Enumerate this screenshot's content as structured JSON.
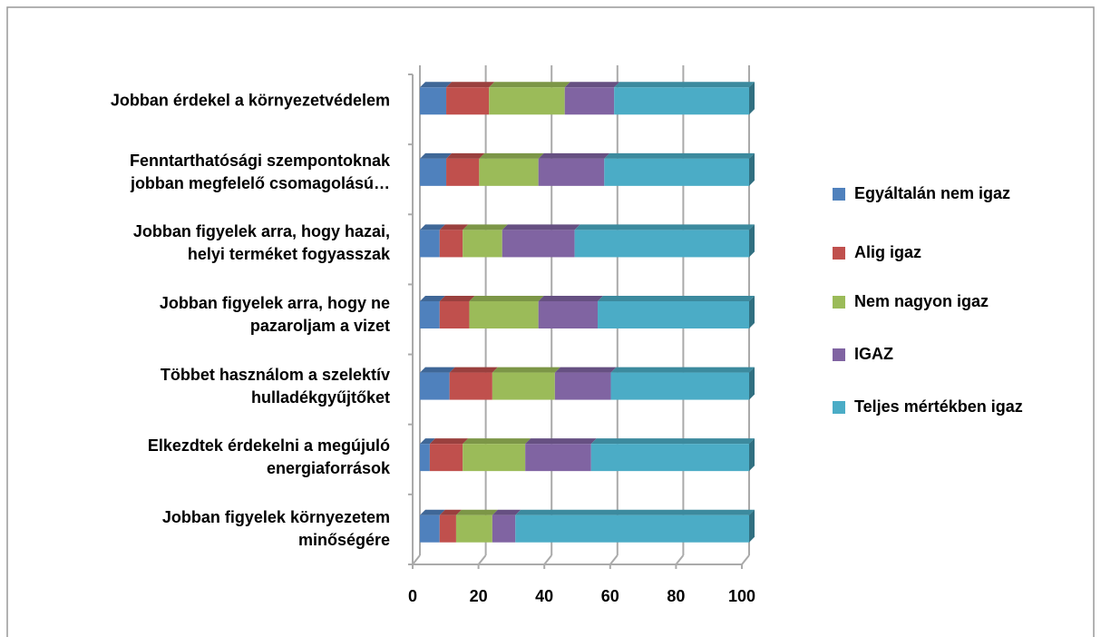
{
  "chart_data": {
    "type": "stacked_bar_horizontal",
    "categories": [
      "Jobban érdekel a környezetvédelem",
      "Fenntarthatósági szempontoknak\njobban megfelelő csomagolású…",
      "Jobban figyelek arra, hogy hazai,\nhelyi terméket fogyasszak",
      "Jobban figyelek arra, hogy ne\npazaroljam a vizet",
      "Többet használom a szelektív\nhulladékgyűjtőket",
      "Elkezdtek érdekelni a megújuló\nenergiaforrások",
      "Jobban figyelek környezetem\nminőségére"
    ],
    "series": [
      {
        "name": "Egyáltalán nem igaz",
        "color": "#4f81bd",
        "values": [
          8,
          8,
          6,
          6,
          9,
          3,
          6
        ]
      },
      {
        "name": "Alig igaz",
        "color": "#c0504d",
        "values": [
          13,
          10,
          7,
          9,
          13,
          10,
          5
        ]
      },
      {
        "name": "Nem nagyon igaz",
        "color": "#9bbb59",
        "values": [
          23,
          18,
          12,
          21,
          19,
          19,
          11
        ]
      },
      {
        "name": "IGAZ",
        "color": "#8064a2",
        "values": [
          15,
          20,
          22,
          18,
          17,
          20,
          7
        ]
      },
      {
        "name": "Teljes mértékben igaz",
        "color": "#4bacc6",
        "values": [
          41,
          44,
          53,
          46,
          42,
          48,
          71
        ]
      }
    ],
    "xlim": [
      0,
      100
    ],
    "xticks": [
      0,
      20,
      40,
      60,
      80,
      100
    ],
    "grid": true,
    "legend": "right"
  }
}
